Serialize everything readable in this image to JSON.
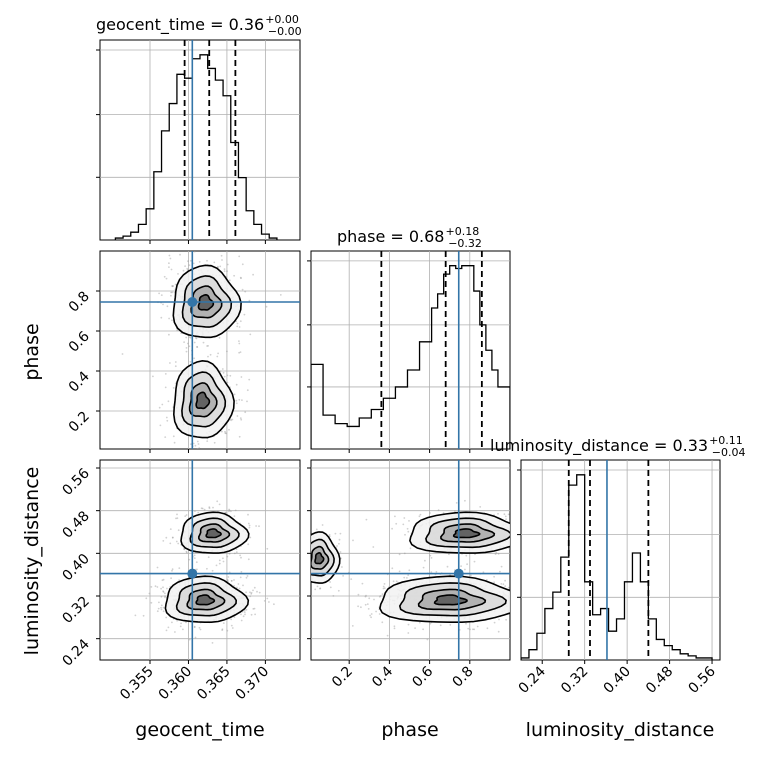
{
  "chart_data": {
    "type": "corner",
    "parameters": [
      "geocent_time",
      "phase",
      "luminosity_distance"
    ],
    "truths": {
      "geocent_time": 0.3605,
      "phase": 0.745,
      "luminosity_distance": 0.362
    },
    "colors": {
      "truth": "#3375a8",
      "hist": "#000000",
      "contour": "#000000",
      "points": "#999999"
    },
    "grid": true,
    "titles": [
      {
        "parameter": "geocent_time",
        "base": "geocent_time = 0.36",
        "plus": "+0.00",
        "minus": "−0.00"
      },
      {
        "parameter": "phase",
        "base": "phase = 0.68",
        "plus": "+0.18",
        "minus": "−0.32"
      },
      {
        "parameter": "luminosity_distance",
        "base": "luminosity_distance = 0.33",
        "plus": "+0.11",
        "minus": "−0.04"
      }
    ],
    "axes": {
      "geocent_time": {
        "label": "geocent_time",
        "range": [
          0.3485,
          0.3745
        ],
        "ticks": [
          "0.355",
          "0.360",
          "0.365",
          "0.370"
        ],
        "tick_values": [
          0.355,
          0.36,
          0.365,
          0.37
        ]
      },
      "phase": {
        "label": "phase",
        "range": [
          0.01,
          1.0
        ],
        "x_ticks": [
          "0.2",
          "0.4",
          "0.6",
          "0.8"
        ],
        "y_ticks": [
          "0.2",
          "0.4",
          "0.6",
          "0.8"
        ],
        "tick_values": [
          0.2,
          0.4,
          0.6,
          0.8
        ]
      },
      "luminosity_distance": {
        "label": "luminosity_distance",
        "range": [
          0.2,
          0.575
        ],
        "ticks": [
          "0.24",
          "0.32",
          "0.40",
          "0.48",
          "0.56"
        ],
        "tick_values": [
          0.24,
          0.32,
          0.4,
          0.48,
          0.56
        ]
      }
    },
    "histograms": {
      "geocent_time": {
        "edges": [
          0.3505,
          0.3515,
          0.3525,
          0.3535,
          0.3545,
          0.3555,
          0.3565,
          0.3575,
          0.3585,
          0.3595,
          0.3605,
          0.3615,
          0.3625,
          0.3635,
          0.3645,
          0.3655,
          0.3665,
          0.3675,
          0.3685,
          0.3695,
          0.3705,
          0.3715
        ],
        "counts": [
          1,
          2,
          4,
          8,
          16,
          35,
          56,
          70,
          85,
          83,
          93,
          95,
          88,
          82,
          74,
          50,
          32,
          15,
          8,
          3,
          1
        ],
        "quantiles": [
          0.3595,
          0.3627,
          0.3661
        ]
      },
      "phase": {
        "edges": [
          0.01,
          0.07,
          0.13,
          0.19,
          0.25,
          0.31,
          0.37,
          0.43,
          0.49,
          0.55,
          0.61,
          0.64,
          0.67,
          0.7,
          0.73,
          0.76,
          0.79,
          0.82,
          0.85,
          0.88,
          0.91,
          0.94,
          1.0
        ],
        "counts": [
          30,
          12,
          9,
          8,
          11,
          14,
          18,
          22,
          28,
          38,
          50,
          55,
          62,
          65,
          64,
          65,
          65,
          56,
          44,
          35,
          28,
          22
        ],
        "quantiles": [
          0.36,
          0.68,
          0.86
        ]
      },
      "luminosity_distance": {
        "edges": [
          0.2,
          0.215,
          0.23,
          0.245,
          0.26,
          0.275,
          0.29,
          0.305,
          0.32,
          0.335,
          0.35,
          0.365,
          0.38,
          0.395,
          0.41,
          0.425,
          0.44,
          0.455,
          0.47,
          0.485,
          0.5,
          0.515,
          0.53,
          0.545,
          0.56
        ],
        "counts": [
          1,
          5,
          13,
          25,
          33,
          50,
          85,
          90,
          38,
          22,
          25,
          14,
          20,
          38,
          52,
          38,
          20,
          10,
          7,
          5,
          3,
          2,
          1,
          1
        ],
        "quantiles": [
          0.29,
          0.33,
          0.44
        ]
      }
    },
    "densities": {
      "phase_vs_geocent_time": {
        "comment_free": true,
        "cells_x": [
          0.3585,
          0.3595,
          0.3605,
          0.3615,
          0.3625,
          0.3635
        ],
        "cells_y": [
          0.6,
          0.65,
          0.7,
          0.75,
          0.8,
          0.85,
          0.9
        ],
        "peak": [
          0.3622,
          0.76
        ]
      },
      "luminosity_distance_vs_geocent_time": {
        "peaks": [
          [
            0.3621,
            0.312
          ],
          [
            0.3632,
            0.437
          ]
        ]
      },
      "luminosity_distance_vs_phase": {
        "peaks": [
          [
            0.7,
            0.312
          ],
          [
            0.78,
            0.437
          ]
        ]
      }
    }
  }
}
